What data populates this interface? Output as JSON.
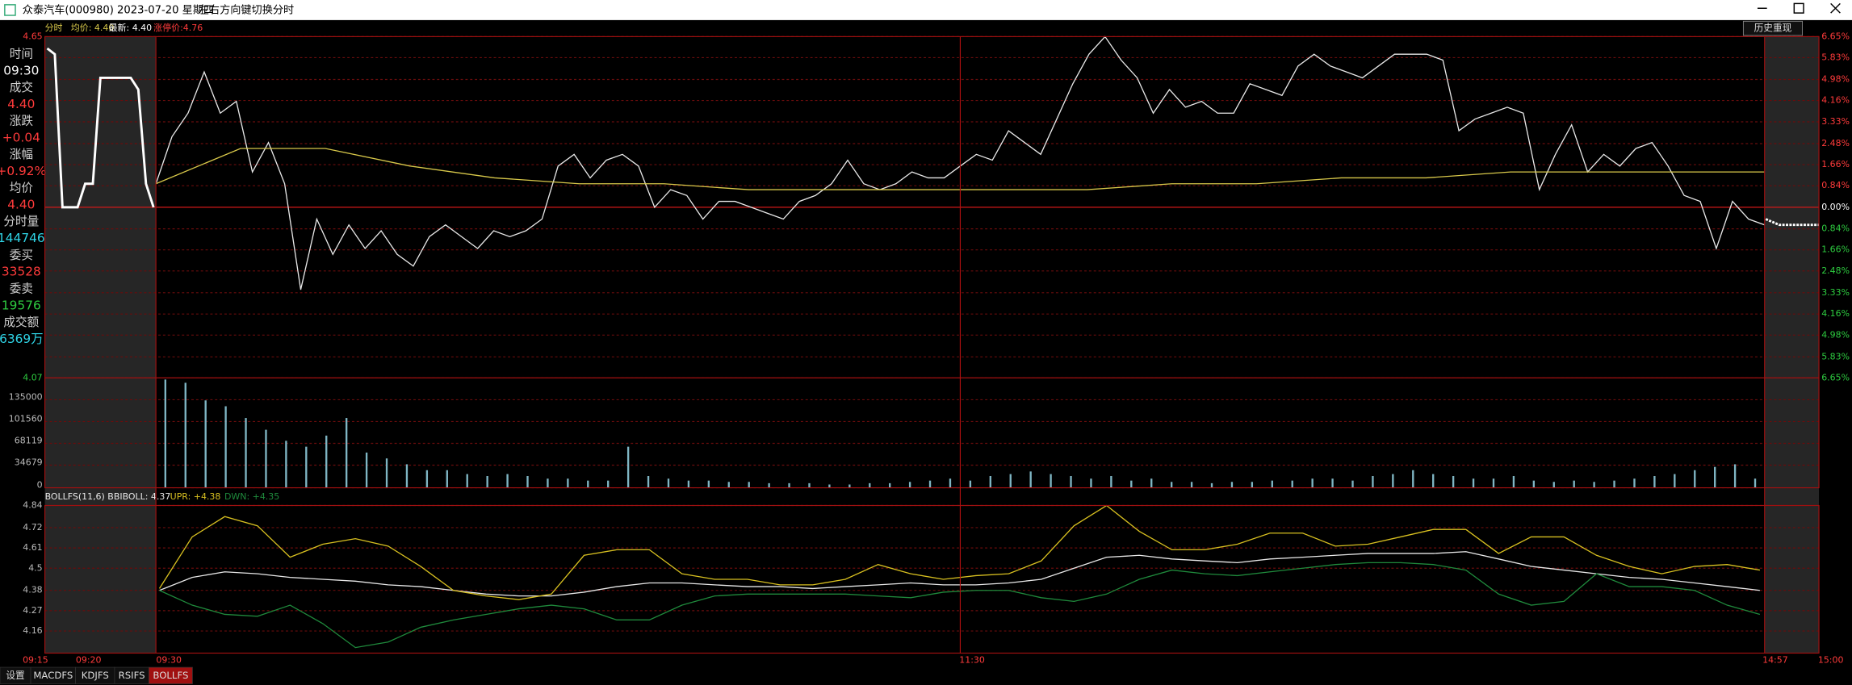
{
  "window": {
    "title": "众泰汽车(000980) 2023-07-20 星期四",
    "hint": "左右方向键切换分时"
  },
  "header": {
    "mode": "分时",
    "limit_up": "涨停价:4.76"
  },
  "history_button": "历史重现",
  "info_panel": [
    {
      "label": "时间",
      "value": "09:30",
      "color": "#ffffff"
    },
    {
      "label": "成交",
      "value": "4.40",
      "color": "#ff3b3b"
    },
    {
      "label": "涨跌",
      "value": "+0.04",
      "color": "#ff3b3b"
    },
    {
      "label": "涨幅",
      "value": "+0.92%",
      "color": "#ff3b3b"
    },
    {
      "label": "均价",
      "value": "4.40",
      "color": "#ff3b3b"
    },
    {
      "label": "分时量",
      "value": "144746",
      "color": "#2fd4e6"
    },
    {
      "label": "委买",
      "value": "33528",
      "color": "#ff3b3b"
    },
    {
      "label": "委卖",
      "value": "19576",
      "color": "#2ecc40"
    },
    {
      "label": "成交额",
      "value": "6369万",
      "color": "#2fd4e6"
    }
  ],
  "time_axis": [
    "09:15",
    "09:20",
    "09:30",
    "11:30",
    "14:57",
    "15:00"
  ],
  "tabs": [
    "设置",
    "MACDFS",
    "KDJFS",
    "RSIFS",
    "BOLLFS"
  ],
  "chart_data": [
    {
      "type": "line",
      "ylim": [
        4.07,
        4.65
      ],
      "yticks": [
        4.65,
        4.07
      ],
      "y2lim": [
        -6.65,
        6.65
      ],
      "y2ticks": [
        {
          "value": 6.65,
          "label": "6.65%"
        },
        {
          "value": 5.83,
          "label": "5.83%"
        },
        {
          "value": 4.98,
          "label": "4.98%"
        },
        {
          "value": 4.16,
          "label": "4.16%"
        },
        {
          "value": 3.33,
          "label": "3.33%"
        },
        {
          "value": 2.48,
          "label": "2.48%"
        },
        {
          "value": 1.66,
          "label": "1.66%"
        },
        {
          "value": 0.84,
          "label": "0.84%"
        },
        {
          "value": 0,
          "label": "0.00%"
        },
        {
          "value": -0.84,
          "label": "0.84%"
        },
        {
          "value": -1.66,
          "label": "1.66%"
        },
        {
          "value": -2.48,
          "label": "2.48%"
        },
        {
          "value": -3.33,
          "label": "3.33%"
        },
        {
          "value": -4.16,
          "label": "4.16%"
        },
        {
          "value": -4.98,
          "label": "4.98%"
        },
        {
          "value": -5.83,
          "label": "5.83%"
        },
        {
          "value": -6.65,
          "label": "6.65%"
        }
      ],
      "grid": true,
      "series": [
        {
          "name": "最新: 4.40",
          "color": "#e8e8e8",
          "values": [
            4.4,
            4.48,
            4.52,
            4.59,
            4.52,
            4.54,
            4.42,
            4.47,
            4.4,
            4.22,
            4.34,
            4.28,
            4.33,
            4.29,
            4.32,
            4.28,
            4.26,
            4.31,
            4.33,
            4.31,
            4.29,
            4.32,
            4.31,
            4.32,
            4.34,
            4.43,
            4.45,
            4.41,
            4.44,
            4.45,
            4.43,
            4.36,
            4.39,
            4.38,
            4.34,
            4.37,
            4.37,
            4.36,
            4.35,
            4.34,
            4.37,
            4.38,
            4.4,
            4.44,
            4.4,
            4.39,
            4.4,
            4.42,
            4.41,
            4.41,
            4.43,
            4.45,
            4.44,
            4.49,
            4.47,
            4.45,
            4.51,
            4.57,
            4.62,
            4.65,
            4.61,
            4.58,
            4.52,
            4.56,
            4.53,
            4.54,
            4.52,
            4.52,
            4.57,
            4.56,
            4.55,
            4.6,
            4.62,
            4.6,
            4.59,
            4.58,
            4.6,
            4.62,
            4.62,
            4.62,
            4.61,
            4.49,
            4.51,
            4.52,
            4.53,
            4.52,
            4.39,
            4.45,
            4.5,
            4.42,
            4.45,
            4.43,
            4.46,
            4.47,
            4.43,
            4.38,
            4.37,
            4.29,
            4.37,
            4.34,
            4.33
          ]
        },
        {
          "name": "均价: 4.40",
          "color": "#d8c84a",
          "values": [
            4.4,
            4.46,
            4.46,
            4.43,
            4.41,
            4.4,
            4.4,
            4.39,
            4.39,
            4.39,
            4.39,
            4.39,
            4.4,
            4.4,
            4.41,
            4.41,
            4.42,
            4.42,
            4.42,
            4.42
          ]
        },
        {
          "color": "#ffffff",
          "values": [
            4.63,
            4.62,
            4.36,
            4.36,
            4.36,
            4.4,
            4.4,
            4.58,
            4.58,
            4.58,
            4.58,
            4.58,
            4.56,
            4.4,
            4.36
          ]
        },
        {
          "color": "#ffffff",
          "values": [
            4.34,
            4.33,
            4.33,
            4.33,
            4.33
          ]
        }
      ]
    },
    {
      "type": "bar",
      "ylim": [
        0,
        168440
      ],
      "yticks": [
        0,
        34679,
        68119,
        101560,
        135000
      ],
      "grid": true,
      "color": "#7fb6c4",
      "values": [
        166000,
        161000,
        134000,
        125000,
        107000,
        89000,
        72000,
        63000,
        80000,
        107000,
        54000,
        45000,
        36000,
        27000,
        27000,
        21000,
        18000,
        21000,
        18000,
        14000,
        14000,
        11000,
        11000,
        63000,
        18000,
        14000,
        11000,
        11000,
        9000,
        9000,
        7000,
        7000,
        7000,
        5000,
        5000,
        7000,
        7000,
        9000,
        11000,
        14000,
        11000,
        18000,
        21000,
        25000,
        21000,
        18000,
        14000,
        18000,
        11000,
        14000,
        9000,
        9000,
        7000,
        9000,
        9000,
        11000,
        11000,
        14000,
        14000,
        11000,
        18000,
        21000,
        27000,
        21000,
        18000,
        14000,
        14000,
        18000,
        11000,
        9000,
        11000,
        9000,
        11000,
        14000,
        18000,
        21000,
        27000,
        32000,
        36000,
        14000
      ]
    },
    {
      "type": "line",
      "ylim": [
        4.04,
        4.84
      ],
      "yticks": [
        4.84,
        4.72,
        4.61,
        4.5,
        4.38,
        4.27,
        4.16
      ],
      "grid": true,
      "series": [
        {
          "name": "BOLLFS(11,6) BBIBOLL: 4.37",
          "color": "#e8e8e8",
          "values": [
            4.38,
            4.45,
            4.48,
            4.47,
            4.45,
            4.44,
            4.43,
            4.41,
            4.4,
            4.38,
            4.36,
            4.35,
            4.35,
            4.37,
            4.4,
            4.42,
            4.42,
            4.41,
            4.4,
            4.4,
            4.39,
            4.4,
            4.41,
            4.42,
            4.41,
            4.41,
            4.42,
            4.44,
            4.5,
            4.56,
            4.57,
            4.55,
            4.54,
            4.53,
            4.55,
            4.56,
            4.57,
            4.58,
            4.58,
            4.58,
            4.59,
            4.55,
            4.51,
            4.49,
            4.47,
            4.45,
            4.44,
            4.42,
            4.4,
            4.38
          ]
        },
        {
          "name": "UPR: +4.38",
          "color": "#d8c020",
          "values": [
            4.39,
            4.67,
            4.78,
            4.73,
            4.56,
            4.63,
            4.66,
            4.62,
            4.51,
            4.38,
            4.35,
            4.33,
            4.36,
            4.57,
            4.6,
            4.6,
            4.47,
            4.44,
            4.44,
            4.41,
            4.41,
            4.44,
            4.52,
            4.47,
            4.44,
            4.46,
            4.47,
            4.54,
            4.73,
            4.84,
            4.7,
            4.6,
            4.6,
            4.63,
            4.69,
            4.69,
            4.62,
            4.63,
            4.67,
            4.71,
            4.71,
            4.58,
            4.67,
            4.67,
            4.57,
            4.51,
            4.47,
            4.51,
            4.52,
            4.49
          ]
        },
        {
          "name": "DWN: +4.35",
          "color": "#1f8a3c",
          "values": [
            4.38,
            4.3,
            4.25,
            4.24,
            4.3,
            4.2,
            4.07,
            4.1,
            4.18,
            4.22,
            4.25,
            4.28,
            4.3,
            4.28,
            4.22,
            4.22,
            4.3,
            4.35,
            4.36,
            4.36,
            4.36,
            4.36,
            4.35,
            4.34,
            4.37,
            4.38,
            4.38,
            4.34,
            4.32,
            4.36,
            4.44,
            4.49,
            4.47,
            4.46,
            4.48,
            4.5,
            4.52,
            4.53,
            4.53,
            4.52,
            4.49,
            4.36,
            4.3,
            4.32,
            4.47,
            4.4,
            4.4,
            4.38,
            4.3,
            4.25
          ]
        }
      ]
    }
  ]
}
